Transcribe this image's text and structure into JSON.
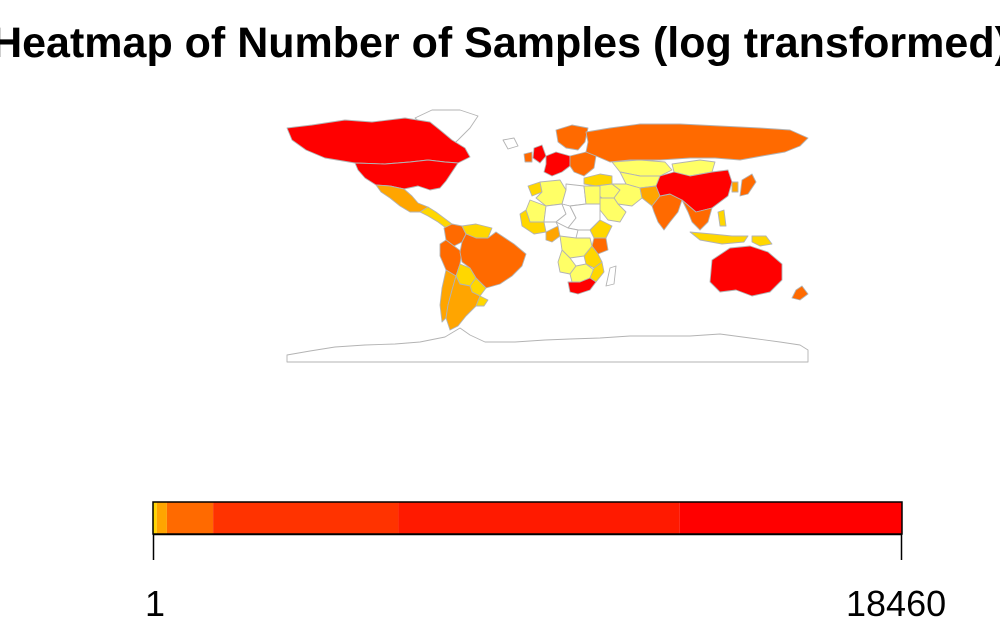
{
  "map": {
    "title": "Heatmap of Number of Samples (log transformed)",
    "projection": "equirectangular world map",
    "border_color": "#b3b3b3",
    "no_data_fill": "#ffffff",
    "palette": [
      "#ffff66",
      "#ffd700",
      "#ffa500",
      "#ff6a00",
      "#ff3300",
      "#ff0000"
    ],
    "regions": [
      {
        "name": "Canada",
        "color": "#ff0000"
      },
      {
        "name": "United States",
        "color": "#ff0000"
      },
      {
        "name": "Greenland",
        "color": "#ffffff"
      },
      {
        "name": "Mexico",
        "color": "#ffa500"
      },
      {
        "name": "Central America",
        "color": "#ffd700"
      },
      {
        "name": "Colombia",
        "color": "#ff6a00"
      },
      {
        "name": "Venezuela",
        "color": "#ffd700"
      },
      {
        "name": "Peru",
        "color": "#ff6a00"
      },
      {
        "name": "Brazil",
        "color": "#ff6a00"
      },
      {
        "name": "Bolivia",
        "color": "#ffd700"
      },
      {
        "name": "Paraguay",
        "color": "#ffd700"
      },
      {
        "name": "Chile",
        "color": "#ffa500"
      },
      {
        "name": "Argentina",
        "color": "#ffa500"
      },
      {
        "name": "Uruguay",
        "color": "#ffd700"
      },
      {
        "name": "Iceland",
        "color": "#ffffff"
      },
      {
        "name": "United Kingdom",
        "color": "#ff0000"
      },
      {
        "name": "Ireland",
        "color": "#ff6a00"
      },
      {
        "name": "Scandinavia",
        "color": "#ff6a00"
      },
      {
        "name": "Western Europe",
        "color": "#ff0000"
      },
      {
        "name": "Eastern Europe",
        "color": "#ff6a00"
      },
      {
        "name": "Russia",
        "color": "#ff6a00"
      },
      {
        "name": "Kazakhstan",
        "color": "#ffff66"
      },
      {
        "name": "Central Asia",
        "color": "#ffff66"
      },
      {
        "name": "Turkey",
        "color": "#ffd700"
      },
      {
        "name": "Middle East",
        "color": "#ffff66"
      },
      {
        "name": "Iran",
        "color": "#ffff66"
      },
      {
        "name": "Saudi Arabia",
        "color": "#ffff66"
      },
      {
        "name": "Pakistan",
        "color": "#ffa500"
      },
      {
        "name": "India",
        "color": "#ff6a00"
      },
      {
        "name": "Mongolia",
        "color": "#ffff66"
      },
      {
        "name": "China",
        "color": "#ff0000"
      },
      {
        "name": "Korea",
        "color": "#ffa500"
      },
      {
        "name": "Japan",
        "color": "#ff6a00"
      },
      {
        "name": "Southeast Asia",
        "color": "#ff6a00"
      },
      {
        "name": "Indonesia",
        "color": "#ffd700"
      },
      {
        "name": "Philippines",
        "color": "#ffd700"
      },
      {
        "name": "Papua New Guinea",
        "color": "#ffd700"
      },
      {
        "name": "Morocco",
        "color": "#ffd700"
      },
      {
        "name": "Algeria",
        "color": "#ffff66"
      },
      {
        "name": "Libya",
        "color": "#ffffff"
      },
      {
        "name": "Egypt",
        "color": "#ffff66"
      },
      {
        "name": "Mali",
        "color": "#ffff66"
      },
      {
        "name": "Niger",
        "color": "#ffffff"
      },
      {
        "name": "Chad",
        "color": "#ffffff"
      },
      {
        "name": "Sudan",
        "color": "#ffffff"
      },
      {
        "name": "West Africa",
        "color": "#ffd700"
      },
      {
        "name": "Cameroon",
        "color": "#ffa500"
      },
      {
        "name": "Central Africa",
        "color": "#ffffff"
      },
      {
        "name": "Ethiopia",
        "color": "#ffd700"
      },
      {
        "name": "Kenya",
        "color": "#ff6a00"
      },
      {
        "name": "DR Congo",
        "color": "#ffff66"
      },
      {
        "name": "Tanzania",
        "color": "#ffd700"
      },
      {
        "name": "Angola",
        "color": "#ffff66"
      },
      {
        "name": "Southern Africa",
        "color": "#ffff66"
      },
      {
        "name": "Mozambique",
        "color": "#ffd700"
      },
      {
        "name": "Madagascar",
        "color": "#ffffff"
      },
      {
        "name": "South Africa",
        "color": "#ff0000"
      },
      {
        "name": "Australia",
        "color": "#ff0000"
      },
      {
        "name": "New Zealand",
        "color": "#ff6a00"
      },
      {
        "name": "Antarctica",
        "color": "#ffffff"
      }
    ]
  },
  "legend": {
    "min_label": "1",
    "max_label": "18460",
    "scale": "log",
    "color_stops": [
      {
        "value": 1,
        "color": "#ffd700"
      },
      {
        "value": 1.05,
        "color": "#ffa500"
      },
      {
        "value": 1.2,
        "color": "#ff6a00"
      },
      {
        "value": 2.2,
        "color": "#ff3300"
      },
      {
        "value": 25,
        "color": "#ff1a00"
      },
      {
        "value": 1000,
        "color": "#ff0000"
      }
    ]
  }
}
